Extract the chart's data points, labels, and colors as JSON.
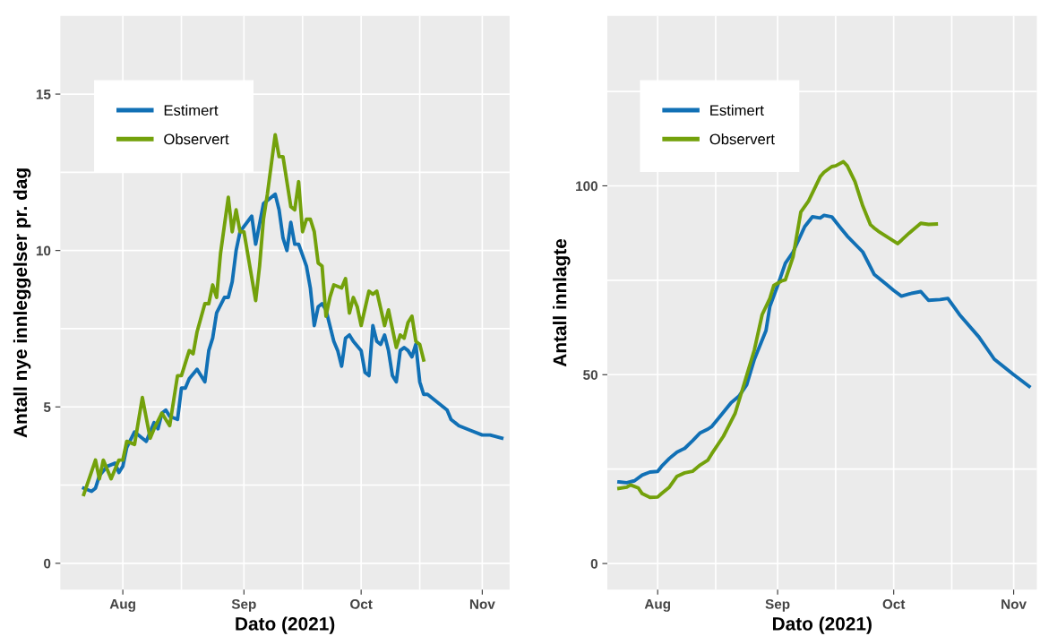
{
  "chart_data": [
    {
      "type": "line",
      "xlabel": "Dato (2021)",
      "ylabel": "Antall nye innleggelser pr. dag",
      "legend": "top left",
      "grid": true,
      "xlim": [
        "2021-07-16",
        "2021-11-08"
      ],
      "ylim": [
        -0.84,
        17.5
      ],
      "xticks": [
        {
          "value": "2021-08-01",
          "label": "Aug"
        },
        {
          "value": "2021-08-16",
          "label": null
        },
        {
          "value": "2021-09-01",
          "label": "Sep"
        },
        {
          "value": "2021-09-16",
          "label": null
        },
        {
          "value": "2021-10-01",
          "label": "Oct"
        },
        {
          "value": "2021-10-16",
          "label": null
        },
        {
          "value": "2021-11-01",
          "label": "Nov"
        }
      ],
      "yticks": [
        0,
        {
          "value": 2.5,
          "label": null
        },
        5,
        {
          "value": 7.5,
          "label": null
        },
        10,
        {
          "value": 12.5,
          "label": null
        },
        15
      ],
      "series": [
        {
          "name": "Estimert",
          "color": "#1170b5",
          "x": [
            "2021-07-22",
            "2021-07-24",
            "2021-07-25",
            "2021-07-26",
            "2021-07-28",
            "2021-07-30",
            "2021-07-31",
            "2021-08-01",
            "2021-08-02",
            "2021-08-04",
            "2021-08-05",
            "2021-08-07",
            "2021-08-09",
            "2021-08-10",
            "2021-08-11",
            "2021-08-12",
            "2021-08-13",
            "2021-08-15",
            "2021-08-16",
            "2021-08-17",
            "2021-08-18",
            "2021-08-20",
            "2021-08-22",
            "2021-08-23",
            "2021-08-24",
            "2021-08-25",
            "2021-08-27",
            "2021-08-28",
            "2021-08-29",
            "2021-08-30",
            "2021-08-31",
            "2021-09-03",
            "2021-09-04",
            "2021-09-06",
            "2021-09-09",
            "2021-09-10",
            "2021-09-11",
            "2021-09-12",
            "2021-09-13",
            "2021-09-14",
            "2021-09-15",
            "2021-09-17",
            "2021-09-18",
            "2021-09-19",
            "2021-09-20",
            "2021-09-21",
            "2021-09-22",
            "2021-09-24",
            "2021-09-25",
            "2021-09-26",
            "2021-09-27",
            "2021-09-28",
            "2021-09-29",
            "2021-10-01",
            "2021-10-02",
            "2021-10-03",
            "2021-10-04",
            "2021-10-05",
            "2021-10-06",
            "2021-10-07",
            "2021-10-08",
            "2021-10-09",
            "2021-10-10",
            "2021-10-11",
            "2021-10-12",
            "2021-10-13",
            "2021-10-14",
            "2021-10-15",
            "2021-10-16",
            "2021-10-17",
            "2021-10-18",
            "2021-10-20",
            "2021-10-21",
            "2021-10-23",
            "2021-10-24",
            "2021-10-26",
            "2021-10-29",
            "2021-11-01",
            "2021-11-03",
            "2021-11-06"
          ],
          "values": [
            2.4,
            2.3,
            2.4,
            2.8,
            3.1,
            3.2,
            2.9,
            3.1,
            3.7,
            4.2,
            4.1,
            3.9,
            4.5,
            4.3,
            4.8,
            4.9,
            4.7,
            4.6,
            5.6,
            5.6,
            5.9,
            6.2,
            5.8,
            6.8,
            7.2,
            8.0,
            8.5,
            8.5,
            9.0,
            10.0,
            10.6,
            11.1,
            10.2,
            11.5,
            11.8,
            11.3,
            10.4,
            10.0,
            10.9,
            10.2,
            10.2,
            9.5,
            8.8,
            7.6,
            8.2,
            8.3,
            8.1,
            7.1,
            6.8,
            6.3,
            7.2,
            7.3,
            7.1,
            6.8,
            6.1,
            6.0,
            7.6,
            7.1,
            7.0,
            7.3,
            6.8,
            6.0,
            5.8,
            6.8,
            6.9,
            6.8,
            6.6,
            7.0,
            5.8,
            5.4,
            5.4,
            5.2,
            5.1,
            4.9,
            4.6,
            4.4,
            4.25,
            4.1,
            4.1,
            4.0
          ]
        },
        {
          "name": "Observert",
          "color": "#73a10b",
          "x": [
            "2021-07-22",
            "2021-07-25",
            "2021-07-26",
            "2021-07-27",
            "2021-07-29",
            "2021-07-31",
            "2021-08-01",
            "2021-08-02",
            "2021-08-04",
            "2021-08-06",
            "2021-08-08",
            "2021-08-09",
            "2021-08-11",
            "2021-08-13",
            "2021-08-15",
            "2021-08-16",
            "2021-08-18",
            "2021-08-19",
            "2021-08-20",
            "2021-08-22",
            "2021-08-23",
            "2021-08-24",
            "2021-08-25",
            "2021-08-26",
            "2021-08-28",
            "2021-08-29",
            "2021-08-30",
            "2021-08-31",
            "2021-09-01",
            "2021-09-04",
            "2021-09-05",
            "2021-09-06",
            "2021-09-07",
            "2021-09-09",
            "2021-09-10",
            "2021-09-11",
            "2021-09-13",
            "2021-09-14",
            "2021-09-15",
            "2021-09-16",
            "2021-09-17",
            "2021-09-18",
            "2021-09-19",
            "2021-09-20",
            "2021-09-21",
            "2021-09-22",
            "2021-09-23",
            "2021-09-24",
            "2021-09-26",
            "2021-09-27",
            "2021-09-28",
            "2021-09-29",
            "2021-09-30",
            "2021-10-01",
            "2021-10-03",
            "2021-10-04",
            "2021-10-05",
            "2021-10-07",
            "2021-10-08",
            "2021-10-10",
            "2021-10-11",
            "2021-10-12",
            "2021-10-13",
            "2021-10-14",
            "2021-10-15",
            "2021-10-16",
            "2021-10-17"
          ],
          "values": [
            2.2,
            3.3,
            2.7,
            3.3,
            2.7,
            3.3,
            3.3,
            3.9,
            3.8,
            5.3,
            4.0,
            4.3,
            4.8,
            4.4,
            6.0,
            6.0,
            6.8,
            6.7,
            7.4,
            8.3,
            8.3,
            8.9,
            8.5,
            9.9,
            11.7,
            10.6,
            11.3,
            10.6,
            10.6,
            8.4,
            9.5,
            11.0,
            11.8,
            13.7,
            13.0,
            13.0,
            11.4,
            11.3,
            12.2,
            10.6,
            11.0,
            11.0,
            10.6,
            9.6,
            9.5,
            7.9,
            8.5,
            8.9,
            8.8,
            9.1,
            8.0,
            8.5,
            8.2,
            7.6,
            8.7,
            8.6,
            8.7,
            7.6,
            8.1,
            6.9,
            7.3,
            7.2,
            7.7,
            7.9,
            7.1,
            7.0,
            6.5
          ]
        }
      ]
    },
    {
      "type": "line",
      "xlabel": "Dato (2021)",
      "ylabel": "Antall innlagte",
      "legend": "top left",
      "grid": true,
      "xlim": [
        "2021-07-19",
        "2021-11-07"
      ],
      "ylim": [
        -6.9,
        145
      ],
      "xticks": [
        {
          "value": "2021-08-01",
          "label": "Aug"
        },
        {
          "value": "2021-08-16",
          "label": null
        },
        {
          "value": "2021-09-01",
          "label": "Sep"
        },
        {
          "value": "2021-09-16",
          "label": null
        },
        {
          "value": "2021-10-01",
          "label": "Oct"
        },
        {
          "value": "2021-10-16",
          "label": null
        },
        {
          "value": "2021-11-01",
          "label": "Nov"
        }
      ],
      "yticks": [
        0,
        {
          "value": 25,
          "label": null
        },
        50,
        {
          "value": 75,
          "label": null
        },
        100,
        {
          "value": 125,
          "label": null
        }
      ],
      "series": [
        {
          "name": "Estimert",
          "color": "#1170b5",
          "x": [
            "2021-07-22",
            "2021-07-24",
            "2021-07-26",
            "2021-07-28",
            "2021-07-30",
            "2021-08-01",
            "2021-08-02",
            "2021-08-04",
            "2021-08-06",
            "2021-08-08",
            "2021-08-10",
            "2021-08-12",
            "2021-08-14",
            "2021-08-15",
            "2021-08-17",
            "2021-08-20",
            "2021-08-22",
            "2021-08-24",
            "2021-08-26",
            "2021-08-29",
            "2021-08-30",
            "2021-09-01",
            "2021-09-03",
            "2021-09-05",
            "2021-09-08",
            "2021-09-10",
            "2021-09-12",
            "2021-09-13",
            "2021-09-15",
            "2021-09-17",
            "2021-09-19",
            "2021-09-23",
            "2021-09-26",
            "2021-09-29",
            "2021-10-01",
            "2021-10-03",
            "2021-10-05",
            "2021-10-08",
            "2021-10-10",
            "2021-10-13",
            "2021-10-15",
            "2021-10-18",
            "2021-10-23",
            "2021-10-27",
            "2021-11-01",
            "2021-11-05"
          ],
          "values": [
            21.6,
            21.4,
            21.9,
            23.4,
            24.2,
            24.4,
            25.7,
            27.8,
            29.5,
            30.5,
            32.5,
            34.6,
            35.6,
            36.3,
            38.8,
            42.6,
            44.3,
            47.3,
            54.1,
            61.7,
            68.1,
            73.6,
            79.5,
            82.5,
            89.2,
            91.8,
            91.5,
            92.2,
            91.8,
            89.2,
            86.7,
            82.5,
            76.5,
            74.0,
            72.3,
            70.8,
            71.4,
            72.0,
            69.7,
            69.9,
            70.2,
            65.9,
            60.0,
            54.1,
            50.0,
            46.9
          ]
        },
        {
          "name": "Observert",
          "color": "#73a10b",
          "x": [
            "2021-07-22",
            "2021-07-24",
            "2021-07-25",
            "2021-07-27",
            "2021-07-28",
            "2021-07-30",
            "2021-08-01",
            "2021-08-02",
            "2021-08-04",
            "2021-08-06",
            "2021-08-08",
            "2021-08-10",
            "2021-08-12",
            "2021-08-14",
            "2021-08-15",
            "2021-08-18",
            "2021-08-21",
            "2021-08-23",
            "2021-08-26",
            "2021-08-28",
            "2021-08-30",
            "2021-08-31",
            "2021-09-02",
            "2021-09-03",
            "2021-09-05",
            "2021-09-07",
            "2021-09-09",
            "2021-09-12",
            "2021-09-13",
            "2021-09-15",
            "2021-09-16",
            "2021-09-18",
            "2021-09-19",
            "2021-09-21",
            "2021-09-23",
            "2021-09-25",
            "2021-09-26",
            "2021-09-27",
            "2021-09-29",
            "2021-10-02",
            "2021-10-03",
            "2021-10-05",
            "2021-10-08",
            "2021-10-10",
            "2021-10-12"
          ],
          "values": [
            19.9,
            20.2,
            20.8,
            20.0,
            18.5,
            17.5,
            17.6,
            18.5,
            20.2,
            23.1,
            24.0,
            24.4,
            26.1,
            27.4,
            29.1,
            33.7,
            39.7,
            46.4,
            56.6,
            65.9,
            70.2,
            73.6,
            74.8,
            75.1,
            81.2,
            93.1,
            96.0,
            102.4,
            103.6,
            105.1,
            105.3,
            106.4,
            105.3,
            101.1,
            94.7,
            89.7,
            88.8,
            88.0,
            86.7,
            84.7,
            85.6,
            87.5,
            90.1,
            89.8,
            89.9
          ]
        }
      ]
    }
  ]
}
